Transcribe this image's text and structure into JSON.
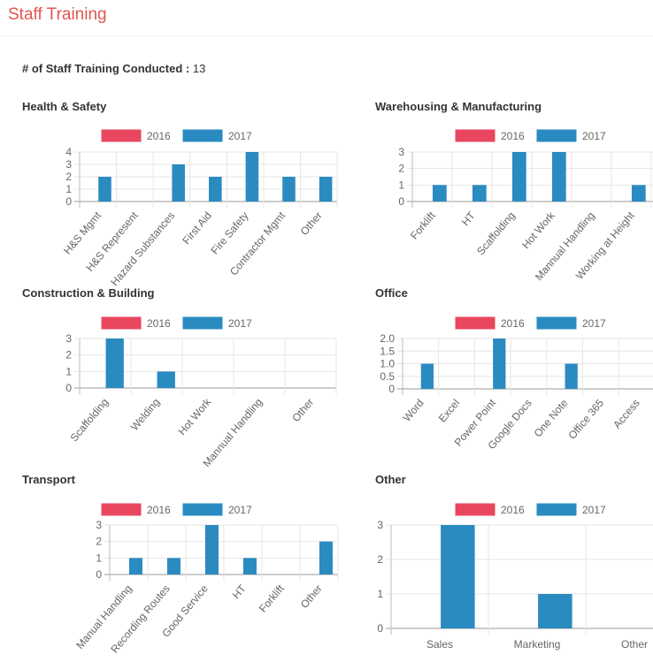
{
  "header": {
    "title": "Staff Training"
  },
  "summary": {
    "label": "# of Staff Training Conducted :",
    "value": "13"
  },
  "colors": {
    "2016": "#e8475f",
    "2017": "#2a8bc1"
  },
  "chart_data": [
    {
      "type": "bar",
      "title": "Health & Safety",
      "legend": [
        "2016",
        "2017"
      ],
      "categories": [
        "H&S Mgmt",
        "H&S Represent",
        "Hazard Substances",
        "First Aid",
        "Fire Safety",
        "Contractor Mgmt",
        "Other"
      ],
      "series": [
        {
          "name": "2016",
          "values": [
            0,
            0,
            0,
            0,
            0,
            0,
            0
          ]
        },
        {
          "name": "2017",
          "values": [
            2,
            0,
            3,
            2,
            4,
            2,
            2
          ]
        }
      ],
      "ylim": [
        0,
        4
      ],
      "yticks": [
        "0",
        "1",
        "2",
        "3",
        "4"
      ],
      "grid": true,
      "legend_position": "top"
    },
    {
      "type": "bar",
      "title": "Warehousing & Manufacturing",
      "legend": [
        "2016",
        "2017"
      ],
      "categories": [
        "Forklift",
        "HT",
        "Scaffolding",
        "Hot Work",
        "Mannual Handling",
        "Working at Height"
      ],
      "series": [
        {
          "name": "2016",
          "values": [
            0,
            0,
            0,
            0,
            0,
            0
          ]
        },
        {
          "name": "2017",
          "values": [
            1,
            1,
            3,
            3,
            0,
            1
          ]
        }
      ],
      "ylim": [
        0,
        3
      ],
      "yticks": [
        "0",
        "1",
        "2",
        "3"
      ],
      "grid": true,
      "legend_position": "top"
    },
    {
      "type": "bar",
      "title": "Construction & Building",
      "legend": [
        "2016",
        "2017"
      ],
      "categories": [
        "Scaffolding",
        "Welding",
        "Hot Work",
        "Mannual Handling",
        "Other"
      ],
      "series": [
        {
          "name": "2016",
          "values": [
            0,
            0,
            0,
            0,
            0
          ]
        },
        {
          "name": "2017",
          "values": [
            3,
            1,
            0,
            0,
            0
          ]
        }
      ],
      "ylim": [
        0,
        3
      ],
      "yticks": [
        "0",
        "1",
        "2",
        "3"
      ],
      "grid": true,
      "legend_position": "top"
    },
    {
      "type": "bar",
      "title": "Office",
      "legend": [
        "2016",
        "2017"
      ],
      "categories": [
        "Word",
        "Excel",
        "Power Point",
        "Google Docs",
        "One Note",
        "Office 365",
        "Access"
      ],
      "series": [
        {
          "name": "2016",
          "values": [
            0,
            0,
            0,
            0,
            0,
            0,
            0
          ]
        },
        {
          "name": "2017",
          "values": [
            1,
            0,
            2,
            0,
            1,
            0,
            0
          ]
        }
      ],
      "ylim": [
        0,
        2
      ],
      "yticks": [
        "0",
        "0.5",
        "1.0",
        "1.5",
        "2.0"
      ],
      "grid": true,
      "legend_position": "top"
    },
    {
      "type": "bar",
      "title": "Transport",
      "legend": [
        "2016",
        "2017"
      ],
      "categories": [
        "Manual Handling",
        "Recording Routes",
        "Good Service",
        "HT",
        "Forklift",
        "Other"
      ],
      "series": [
        {
          "name": "2016",
          "values": [
            0,
            0,
            0,
            0,
            0,
            0
          ]
        },
        {
          "name": "2017",
          "values": [
            1,
            1,
            3,
            1,
            0,
            2
          ]
        }
      ],
      "ylim": [
        0,
        3
      ],
      "yticks": [
        "0",
        "1",
        "2",
        "3"
      ],
      "grid": true,
      "legend_position": "top"
    },
    {
      "type": "bar",
      "title": "Other",
      "legend": [
        "2016",
        "2017"
      ],
      "categories": [
        "Sales",
        "Marketing",
        "Other"
      ],
      "series": [
        {
          "name": "2016",
          "values": [
            0,
            0,
            0
          ]
        },
        {
          "name": "2017",
          "values": [
            3,
            1,
            0
          ]
        }
      ],
      "ylim": [
        0,
        3
      ],
      "yticks": [
        "0",
        "1",
        "2",
        "3"
      ],
      "grid": true,
      "legend_position": "top"
    }
  ]
}
